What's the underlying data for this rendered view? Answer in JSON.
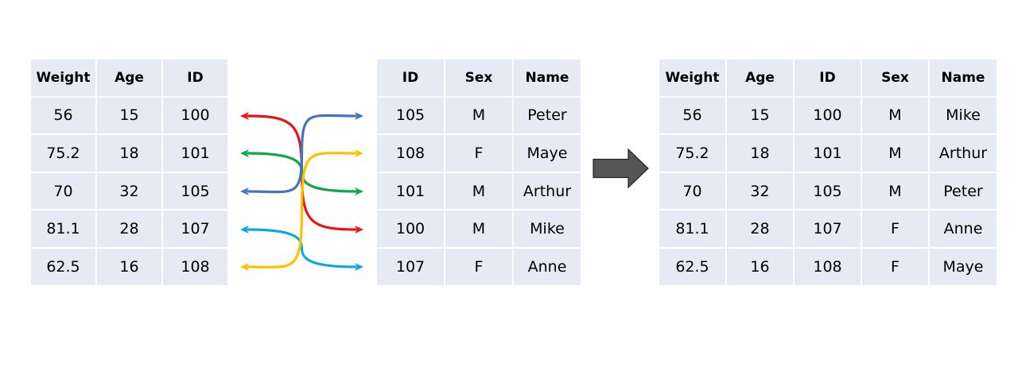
{
  "left_table": {
    "headers": [
      "Weight",
      "Age",
      "ID"
    ],
    "rows": [
      [
        "56",
        "15",
        "100"
      ],
      [
        "75.2",
        "18",
        "101"
      ],
      [
        "70",
        "32",
        "105"
      ],
      [
        "81.1",
        "28",
        "107"
      ],
      [
        "62.5",
        "16",
        "108"
      ]
    ]
  },
  "middle_table": {
    "headers": [
      "ID",
      "Sex",
      "Name"
    ],
    "rows": [
      [
        "105",
        "M",
        "Peter"
      ],
      [
        "108",
        "F",
        "Maye"
      ],
      [
        "101",
        "M",
        "Arthur"
      ],
      [
        "100",
        "M",
        "Mike"
      ],
      [
        "107",
        "F",
        "Anne"
      ]
    ]
  },
  "result_table": {
    "headers": [
      "Weight",
      "Age",
      "ID",
      "Sex",
      "Name"
    ],
    "rows": [
      [
        "56",
        "15",
        "100",
        "M",
        "Mike"
      ],
      [
        "75.2",
        "18",
        "101",
        "M",
        "Arthur"
      ],
      [
        "70",
        "32",
        "105",
        "M",
        "Peter"
      ],
      [
        "81.1",
        "28",
        "107",
        "F",
        "Anne"
      ],
      [
        "62.5",
        "16",
        "108",
        "F",
        "Maye"
      ]
    ]
  },
  "links": [
    {
      "from_id": "100",
      "to_id": "100",
      "color": "#ee1111"
    },
    {
      "from_id": "101",
      "to_id": "101",
      "color": "#11a64a"
    },
    {
      "from_id": "105",
      "to_id": "105",
      "color": "#4472c4"
    },
    {
      "from_id": "107",
      "to_id": "107",
      "color": "#0aa8e0"
    },
    {
      "from_id": "108",
      "to_id": "108",
      "color": "#ffc000"
    }
  ],
  "colors": {
    "cell_background": "#e8eaf3",
    "arrow_fill": "#555555"
  },
  "icons": {
    "merge_arrow": "right-arrow-icon"
  }
}
